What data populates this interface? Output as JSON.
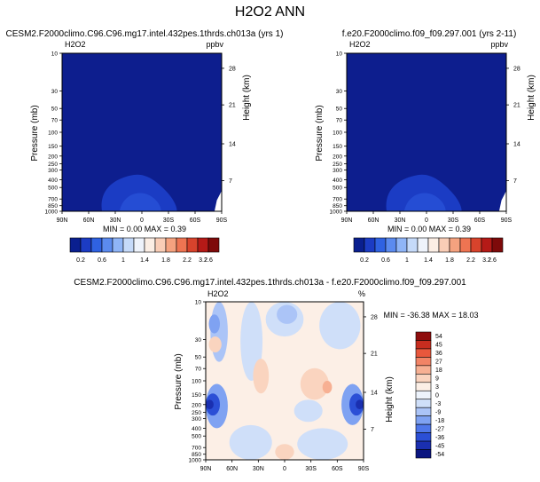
{
  "page_title": "H2O2 ANN",
  "colors": {
    "abs_palette": [
      "#0a1f8f",
      "#1c3cc4",
      "#2f62e2",
      "#5b8bef",
      "#8fb5f7",
      "#c5daf9",
      "#eef3fb",
      "#fbeee4",
      "#f9cdb6",
      "#f5a27f",
      "#ee7452",
      "#d8432c",
      "#b51a17",
      "#7e0a0a"
    ],
    "diff_palette": [
      "#0a1580",
      "#1a2fb0",
      "#2b4fd6",
      "#4f77ea",
      "#7fa2f2",
      "#abc4f7",
      "#cfdff9",
      "#edf3fc",
      "#fcefe6",
      "#fad4bf",
      "#f7b093",
      "#f28466",
      "#e8573c",
      "#c72d1f",
      "#8e0d0d"
    ],
    "field_dark": "#0d1e8e",
    "field_bubble": "#1b3cc4",
    "field_bubble_inner": "#2a54dc"
  },
  "chart_data": [
    {
      "type": "heatmap",
      "title": "CESM2.F2000climo.C96.C96.mg17.intel.432pes.1thrds.ch013a (yrs 1)",
      "variable_label": "H2O2",
      "units": "ppbv",
      "ylabel": "Pressure (mb)",
      "y2label": "Height (km)",
      "x_ticks": [
        "90N",
        "60N",
        "30N",
        "0",
        "30S",
        "60S",
        "90S"
      ],
      "y_ticks": [
        "10",
        "30",
        "50",
        "70",
        "100",
        "150",
        "200",
        "250",
        "300",
        "400",
        "500",
        "700",
        "850",
        "1000"
      ],
      "y2_ticks": [
        "28",
        "21",
        "14",
        "7"
      ],
      "stats_text": "MIN =  0.00  MAX =  0.39",
      "min": 0.0,
      "max": 0.39,
      "colorbar_labels": [
        "0.2",
        "0.6",
        "1",
        "1.4",
        "1.8",
        "2.2",
        "2.6",
        "3.2"
      ]
    },
    {
      "type": "heatmap",
      "title": "f.e20.F2000climo.f09_f09.297.001 (yrs 2-11)",
      "variable_label": "H2O2",
      "units": "ppbv",
      "ylabel": "Pressure (mb)",
      "y2label": "Height (km)",
      "x_ticks": [
        "90N",
        "60N",
        "30N",
        "0",
        "30S",
        "60S",
        "90S"
      ],
      "y_ticks": [
        "10",
        "30",
        "50",
        "70",
        "100",
        "150",
        "200",
        "250",
        "300",
        "400",
        "500",
        "700",
        "850",
        "1000"
      ],
      "y2_ticks": [
        "28",
        "21",
        "14",
        "7"
      ],
      "stats_text": "MIN =  0.00  MAX =  0.39",
      "min": 0.0,
      "max": 0.39,
      "colorbar_labels": [
        "0.2",
        "0.6",
        "1",
        "1.4",
        "1.8",
        "2.2",
        "2.6",
        "3.2"
      ]
    },
    {
      "type": "heatmap",
      "title": "CESM2.F2000climo.C96.C96.mg17.intel.432pes.1thrds.ch013a - f.e20.F2000climo.f09_f09.297.001",
      "variable_label": "H2O2",
      "units": "%",
      "ylabel": "Pressure (mb)",
      "y2label": "Height (km)",
      "x_ticks": [
        "90N",
        "60N",
        "30N",
        "0",
        "30S",
        "60S",
        "90S"
      ],
      "y_ticks": [
        "10",
        "30",
        "50",
        "70",
        "100",
        "150",
        "200",
        "250",
        "300",
        "400",
        "500",
        "700",
        "850",
        "1000"
      ],
      "y2_ticks": [
        "28",
        "21",
        "14",
        "7"
      ],
      "stats_text": "MIN = -36.38  MAX = 18.03",
      "min": -36.38,
      "max": 18.03,
      "colorbar_labels": [
        "54",
        "45",
        "36",
        "27",
        "18",
        "9",
        "3",
        "0",
        "-3",
        "-9",
        "-18",
        "-27",
        "-36",
        "-45",
        "-54"
      ]
    }
  ]
}
